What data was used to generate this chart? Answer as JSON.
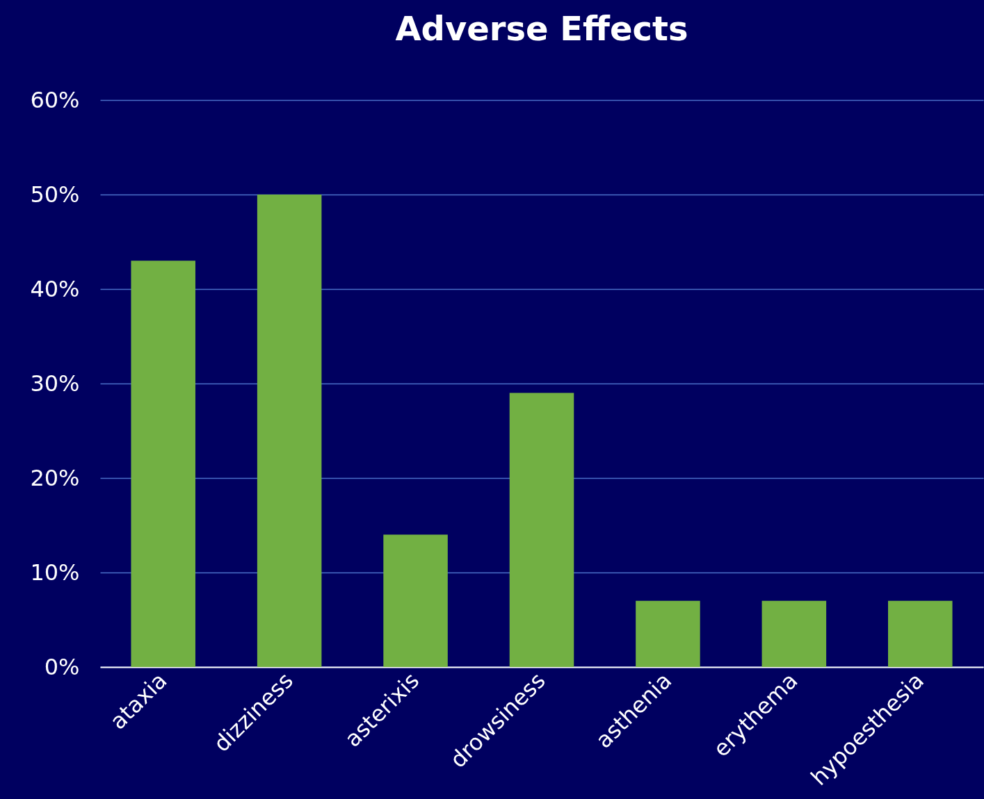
{
  "chart_data": {
    "type": "bar",
    "title": "Adverse Effects",
    "categories": [
      "ataxia",
      "dizziness",
      "asterixis",
      "drowsiness",
      "asthenia",
      "erythema",
      "hypoesthesia"
    ],
    "values": [
      43,
      50,
      14,
      29,
      7,
      7,
      7
    ],
    "color": "#72b043",
    "ylim": [
      0,
      60
    ],
    "yticks": [
      {
        "value": 0,
        "label": "0%"
      },
      {
        "value": 10,
        "label": "10%"
      },
      {
        "value": 20,
        "label": "20%"
      },
      {
        "value": 30,
        "label": "30%"
      },
      {
        "value": 40,
        "label": "40%"
      },
      {
        "value": 50,
        "label": "50%"
      },
      {
        "value": 60,
        "label": "60%"
      }
    ],
    "grid": "y"
  }
}
